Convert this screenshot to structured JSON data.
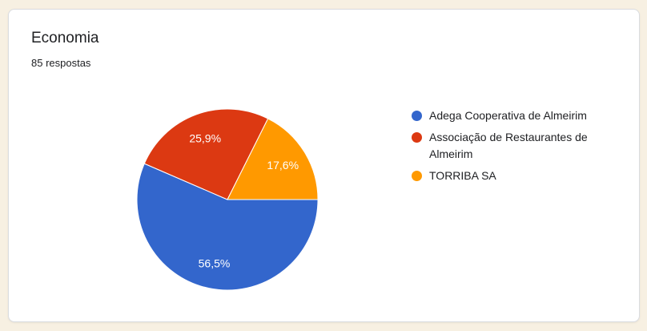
{
  "theme": {
    "page_background": "#F7F0E2",
    "card_background": "#FFFFFF",
    "card_border": "#DADCE0"
  },
  "card": {
    "title": "Economia",
    "subtitle": "85 respostas"
  },
  "chart_data": {
    "type": "pie",
    "title": "Economia",
    "responses_count": 85,
    "responses_label": "85 respostas",
    "start_angle_deg": 90,
    "direction": "clockwise",
    "legend_position": "right",
    "label_color": "#FFFFFF",
    "slices": [
      {
        "label": "Adega Cooperativa de Almeirim",
        "percent": 56.5,
        "percent_label": "56,5%",
        "color": "#3366CC"
      },
      {
        "label": "Associação de Restaurantes de Almeirim",
        "percent": 25.9,
        "percent_label": "25,9%",
        "color": "#DC3912"
      },
      {
        "label": "TORRIBA SA",
        "percent": 17.6,
        "percent_label": "17,6%",
        "color": "#FF9900"
      }
    ]
  }
}
